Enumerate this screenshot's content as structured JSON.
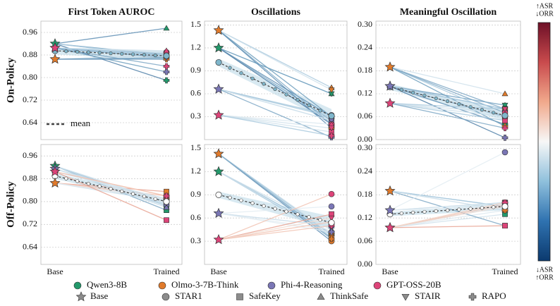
{
  "chart_data": [
    {
      "type": "line",
      "title": "First Token AUROC",
      "row_label": "On-Policy",
      "ylim": [
        0.58,
        1.0
      ],
      "yticks": [
        0.64,
        0.72,
        {
          "value": 0.8,
          "label": "0.80"
        },
        0.88,
        0.96
      ],
      "grid": true,
      "mean_color": "#7fb6cb",
      "mean": [
        0.895,
        0.877
      ],
      "mean_band": [
        [
          0.882,
          0.905
        ],
        [
          0.862,
          0.893
        ]
      ],
      "models": [
        {
          "color": "#23996b",
          "base": 0.92,
          "trained": [
            0.88,
            0.875,
            0.975,
            0.875,
            0.79
          ],
          "line_colors": [
            "#6f9fbe",
            "#a9c9de",
            "#5f8fb5",
            "#a9c9de",
            "#4f7fa8"
          ]
        },
        {
          "color": "#e07a2b",
          "base": 0.865,
          "trained": [
            0.87,
            0.88,
            0.88,
            0.87,
            0.865
          ],
          "line_colors": [
            "#7fa9c6",
            "#a9c9de",
            "#cfe1ec",
            "#7fa9c6",
            "#5f8fb5"
          ]
        },
        {
          "color": "#7a76b5",
          "base": 0.905,
          "trained": [
            0.875,
            0.88,
            0.88,
            0.87,
            0.82
          ],
          "line_colors": [
            "#a9c9de",
            "#cfe1ec",
            "#a9c9de",
            "#7fa9c6",
            "#6f9fbe"
          ]
        },
        {
          "color": "#dd4479",
          "base": 0.905,
          "trained": [
            0.89,
            0.885,
            0.895,
            0.88,
            0.84
          ],
          "line_colors": [
            "#cfe1ec",
            "#a9c9de",
            "#cfe1ec",
            "#a9c9de",
            "#7fa9c6"
          ]
        }
      ]
    },
    {
      "type": "line",
      "title": "Oscillations",
      "ylim": [
        0.0,
        1.55
      ],
      "yticks": [
        0.3,
        0.6,
        0.9,
        1.2,
        1.5
      ],
      "grid": true,
      "mean_color": "#7fb6cb",
      "mean": [
        1.01,
        0.31
      ],
      "mean_band": [
        [
          0.96,
          1.06
        ],
        [
          0.22,
          0.4
        ]
      ],
      "models": [
        {
          "color": "#23996b",
          "base": 1.2,
          "trained": [
            0.3,
            0.25,
            0.6,
            0.6,
            0.2
          ],
          "line_colors": [
            "#5f8fb5",
            "#7fa9c6",
            "#a9c9de",
            "#6f9fbe",
            "#4f7fa8"
          ]
        },
        {
          "color": "#e07a2b",
          "base": 1.43,
          "trained": [
            0.3,
            0.2,
            0.68,
            0.65,
            0.15
          ],
          "line_colors": [
            "#6f9fbe",
            "#7fa9c6",
            "#a9c9de",
            "#cfe1ec",
            "#5f8fb5"
          ]
        },
        {
          "color": "#7a76b5",
          "base": 0.66,
          "trained": [
            0.32,
            0.25,
            0.3,
            0.25,
            0.03
          ],
          "line_colors": [
            "#a9c9de",
            "#cfe1ec",
            "#a9c9de",
            "#cfe1ec",
            "#7fa9c6"
          ]
        },
        {
          "color": "#dd4479",
          "base": 0.32,
          "trained": [
            0.2,
            0.1,
            0.2,
            0.15,
            0.05
          ],
          "line_colors": [
            "#e3edf3",
            "#cfe1ec",
            "#e3edf3",
            "#cfe1ec",
            "#a9c9de"
          ]
        }
      ]
    },
    {
      "type": "line",
      "title": "Meaningful Oscillation",
      "ylim": [
        0.0,
        0.31
      ],
      "yticks": [
        {
          "value": 0.0,
          "label": "0.00"
        },
        0.06,
        0.12,
        0.18,
        0.24,
        {
          "value": 0.3,
          "label": "0.30"
        }
      ],
      "grid": true,
      "mean_color": "#7fb6cb",
      "mean": [
        0.138,
        0.063
      ],
      "mean_band": [
        [
          0.13,
          0.146
        ],
        [
          0.05,
          0.076
        ]
      ],
      "models": [
        {
          "color": "#23996b",
          "base": 0.14,
          "trained": [
            0.06,
            0.08,
            0.09,
            0.09,
            0.04
          ],
          "line_colors": [
            "#6f9fbe",
            "#a9c9de",
            "#a9c9de",
            "#7fa9c6",
            "#5f8fb5"
          ]
        },
        {
          "color": "#e07a2b",
          "base": 0.19,
          "trained": [
            0.08,
            0.06,
            0.12,
            0.07,
            0.035
          ],
          "line_colors": [
            "#7fa9c6",
            "#a9c9de",
            "#cfe1ec",
            "#7fa9c6",
            "#6f9fbe"
          ]
        },
        {
          "color": "#7a76b5",
          "base": 0.14,
          "trained": [
            0.06,
            0.07,
            0.08,
            0.08,
            0.005
          ],
          "line_colors": [
            "#a9c9de",
            "#cfe1ec",
            "#a9c9de",
            "#a9c9de",
            "#4f7fa8"
          ]
        },
        {
          "color": "#dd4479",
          "base": 0.095,
          "trained": [
            0.07,
            0.05,
            0.06,
            0.08,
            0.03
          ],
          "line_colors": [
            "#cfe1ec",
            "#a9c9de",
            "#cfe1ec",
            "#a9c9de",
            "#7fa9c6"
          ]
        }
      ]
    },
    {
      "type": "line",
      "row_label": "Off-Policy",
      "categories": [
        "Base",
        "Trained"
      ],
      "ylim": [
        0.58,
        1.0
      ],
      "yticks": [
        0.64,
        0.72,
        {
          "value": 0.8,
          "label": "0.80"
        },
        0.88,
        0.96
      ],
      "grid": true,
      "mean_color": "#ffffff",
      "mean": [
        0.89,
        0.8
      ],
      "mean_band": [
        [
          0.88,
          0.9
        ],
        [
          0.79,
          0.81
        ]
      ],
      "models": [
        {
          "color": "#23996b",
          "base": 0.925,
          "trained": [
            0.785,
            0.77,
            0.78,
            0.79,
            0.8
          ],
          "line_colors": [
            "#a9c9de",
            "#7fa9c6",
            "#cfe1ec",
            "#a9c9de",
            "#cfe1ec"
          ]
        },
        {
          "color": "#e07a2b",
          "base": 0.865,
          "trained": [
            0.81,
            0.835,
            0.82,
            0.8,
            0.81
          ],
          "line_colors": [
            "#f2c4b3",
            "#e8a493",
            "#f2c4b3",
            "#cfe1ec",
            "#e3edf3"
          ]
        },
        {
          "color": "#7a76b5",
          "base": 0.915,
          "trained": [
            0.79,
            0.8,
            0.78,
            0.795,
            0.8
          ],
          "line_colors": [
            "#cfe1ec",
            "#a9c9de",
            "#cfe1ec",
            "#e3edf3",
            "#cfe1ec"
          ]
        },
        {
          "color": "#dd4479",
          "base": 0.905,
          "trained": [
            0.82,
            0.735,
            0.81,
            0.81,
            0.82
          ],
          "line_colors": [
            "#f2c4b3",
            "#e8a493",
            "#e3edf3",
            "#cfe1ec",
            "#f2c4b3"
          ]
        }
      ]
    },
    {
      "type": "line",
      "categories": [
        "Base",
        "Trained"
      ],
      "ylim": [
        0.0,
        1.55
      ],
      "yticks": [
        0.3,
        0.6,
        0.9,
        1.2,
        1.5
      ],
      "grid": true,
      "mean_color": "#ffffff",
      "mean": [
        0.9,
        0.54
      ],
      "mean_band": [
        [
          0.86,
          0.94
        ],
        [
          0.46,
          0.62
        ]
      ],
      "models": [
        {
          "color": "#23996b",
          "base": 1.2,
          "trained": [
            0.4,
            0.35,
            0.45,
            0.4,
            0.38
          ],
          "line_colors": [
            "#7fa9c6",
            "#a9c9de",
            "#cfe1ec",
            "#a9c9de",
            "#cfe1ec"
          ]
        },
        {
          "color": "#e07a2b",
          "base": 1.43,
          "trained": [
            0.3,
            0.35,
            0.4,
            0.38,
            0.33
          ],
          "line_colors": [
            "#5f8fb5",
            "#a9c9de",
            "#cfe1ec",
            "#a9c9de",
            "#7fa9c6"
          ]
        },
        {
          "color": "#7a76b5",
          "base": 0.66,
          "trained": [
            0.75,
            0.5,
            0.45,
            0.5,
            0.42
          ],
          "line_colors": [
            "#e3edf3",
            "#cfe1ec",
            "#e3edf3",
            "#cfe1ec",
            "#e3edf3"
          ]
        },
        {
          "color": "#dd4479",
          "base": 0.32,
          "trained": [
            0.91,
            0.65,
            0.55,
            0.6,
            0.5
          ],
          "line_colors": [
            "#f2c4b3",
            "#e8a493",
            "#f2c4b3",
            "#f2dcd2",
            "#f2c4b3"
          ]
        }
      ]
    },
    {
      "type": "line",
      "categories": [
        "Base",
        "Trained"
      ],
      "ylim": [
        0.0,
        0.31
      ],
      "yticks": [
        {
          "value": 0.0,
          "label": "0.00"
        },
        0.06,
        0.12,
        0.18,
        0.24,
        {
          "value": 0.3,
          "label": "0.30"
        }
      ],
      "grid": true,
      "mean_color": "#ffffff",
      "mean": [
        0.13,
        0.15
      ],
      "mean_band": [
        [
          0.125,
          0.135
        ],
        [
          0.14,
          0.16
        ]
      ],
      "models": [
        {
          "color": "#23996b",
          "base": 0.095,
          "trained": [
            0.15,
            0.13,
            0.14,
            0.15,
            0.14
          ],
          "line_colors": [
            "#e3edf3",
            "#cfe1ec",
            "#e3edf3",
            "#cfe1ec",
            "#e3edf3"
          ]
        },
        {
          "color": "#e07a2b",
          "base": 0.19,
          "trained": [
            0.15,
            0.1,
            0.14,
            0.15,
            0.14
          ],
          "line_colors": [
            "#a9c9de",
            "#7fa9c6",
            "#cfe1ec",
            "#a9c9de",
            "#cfe1ec"
          ]
        },
        {
          "color": "#7a76b5",
          "base": 0.14,
          "trained": [
            0.29,
            0.16,
            0.15,
            0.16,
            0.15
          ],
          "line_colors": [
            "#e3edf3",
            "#cfe1ec",
            "#e3edf3",
            "#cfe1ec",
            "#e3edf3"
          ]
        },
        {
          "color": "#dd4479",
          "base": 0.095,
          "trained": [
            0.16,
            0.1,
            0.15,
            0.155,
            0.16
          ],
          "line_colors": [
            "#f2c4b3",
            "#e8a493",
            "#f2dcd2",
            "#f2c4b3",
            "#f2dcd2"
          ]
        }
      ]
    }
  ],
  "mean_label": "mean",
  "legend": {
    "models": [
      {
        "name": "Qwen3-8B",
        "color": "#23996b"
      },
      {
        "name": "Olmo-3-7B-Think",
        "color": "#e07a2b"
      },
      {
        "name": "Phi-4-Reasoning",
        "color": "#7a76b5"
      },
      {
        "name": "GPT-OSS-20B",
        "color": "#dd4479"
      }
    ],
    "methods": [
      {
        "name": "Base",
        "marker": "star"
      },
      {
        "name": "STAR1",
        "marker": "circle"
      },
      {
        "name": "SafeKey",
        "marker": "square"
      },
      {
        "name": "ThinkSafe",
        "marker": "triangle"
      },
      {
        "name": "STAIR",
        "marker": "triangle-down"
      },
      {
        "name": "RAPO",
        "marker": "plus"
      }
    ],
    "method_color": "#8c8c8c"
  },
  "colorbar": {
    "top_label": [
      "↑ASR",
      "↓ORR"
    ],
    "bottom_label": [
      "↓ASR",
      "↑ORR"
    ],
    "colors": [
      "#0b3a6e",
      "#2f72b0",
      "#8fc0dc",
      "#f7f7f7",
      "#f1a98c",
      "#c94b4d",
      "#6e1027"
    ]
  }
}
